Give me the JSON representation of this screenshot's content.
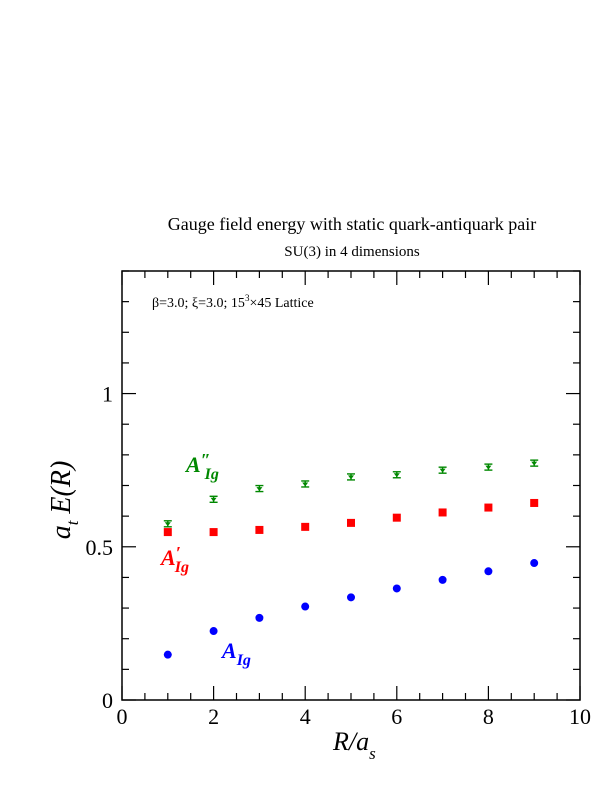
{
  "chart_data": {
    "type": "scatter",
    "title": "Gauge field energy with static quark-antiquark pair",
    "subtitle": "SU(3) in 4 dimensions",
    "annotation": "β=3.0; ξ=3.0; 15³×45 Lattice",
    "xlabel": "R/a_s",
    "ylabel": "a_t E(R)",
    "xlim": [
      0,
      10
    ],
    "ylim": [
      0,
      1.4
    ],
    "xticks": [
      "0",
      "2",
      "4",
      "6",
      "8",
      "10"
    ],
    "yticks": [
      "0",
      "0.5",
      "1"
    ],
    "x": [
      1,
      2,
      3,
      4,
      5,
      6,
      7,
      8,
      9
    ],
    "series": [
      {
        "name": "A_Ig",
        "label_main": "A",
        "label_sub": "Ig",
        "label_prime": "",
        "color": "#0000ff",
        "marker": "circle",
        "values": [
          0.148,
          0.225,
          0.268,
          0.305,
          0.335,
          0.364,
          0.392,
          0.42,
          0.447
        ]
      },
      {
        "name": "A′_Ig",
        "label_main": "A",
        "label_sub": "Ig",
        "label_prime": "′",
        "color": "#ff0000",
        "marker": "square",
        "values": [
          0.548,
          0.548,
          0.555,
          0.565,
          0.578,
          0.595,
          0.612,
          0.628,
          0.643
        ]
      },
      {
        "name": "A″_Ig",
        "label_main": "A",
        "label_sub": "Ig",
        "label_prime": "″",
        "color": "#008800",
        "marker": "star",
        "values": [
          0.575,
          0.655,
          0.69,
          0.705,
          0.728,
          0.735,
          0.75,
          0.76,
          0.773
        ]
      }
    ],
    "grid": false,
    "legend": "inline labels next to each series"
  }
}
